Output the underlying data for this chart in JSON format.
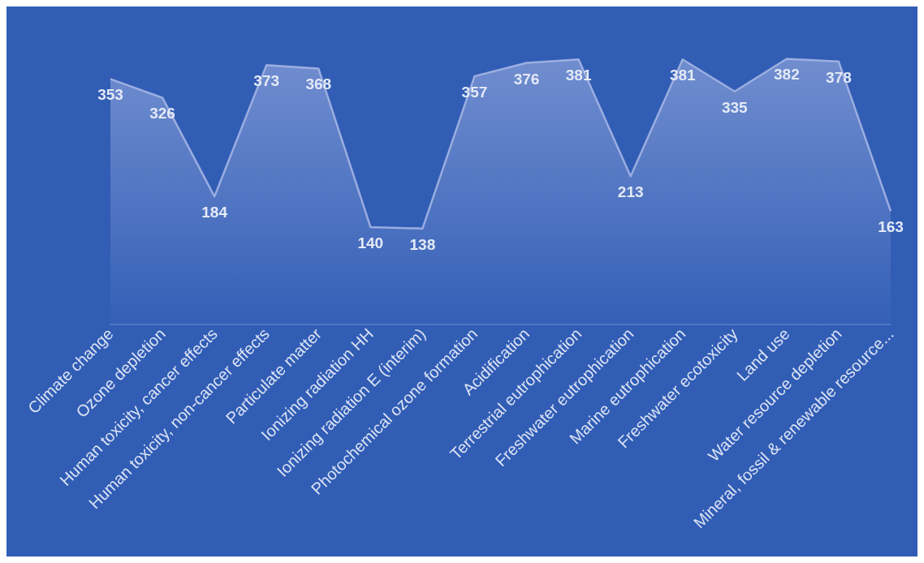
{
  "chart_data": {
    "type": "area",
    "categories": [
      "Climate change",
      "Ozone depletion",
      "Human toxicity, cancer effects",
      "Human toxicity, non-cancer effects",
      "Particulate matter",
      "Ionizing radiation HH",
      "Ionizing radiation E (interim)",
      "Photochemical ozone formation",
      "Acidification",
      "Terrestrial eutrophication",
      "Freshwater eutrophication",
      "Marine eutrophication",
      "Freshwater ecotoxicity",
      "Land use",
      "Water resource depletion",
      "Mineral, fossil & renewable resource..."
    ],
    "values": [
      353,
      326,
      184,
      373,
      368,
      140,
      138,
      357,
      376,
      381,
      213,
      381,
      335,
      382,
      378,
      163
    ],
    "color": "#a9b8e6",
    "data_labels": true,
    "tick_labels": "x"
  }
}
